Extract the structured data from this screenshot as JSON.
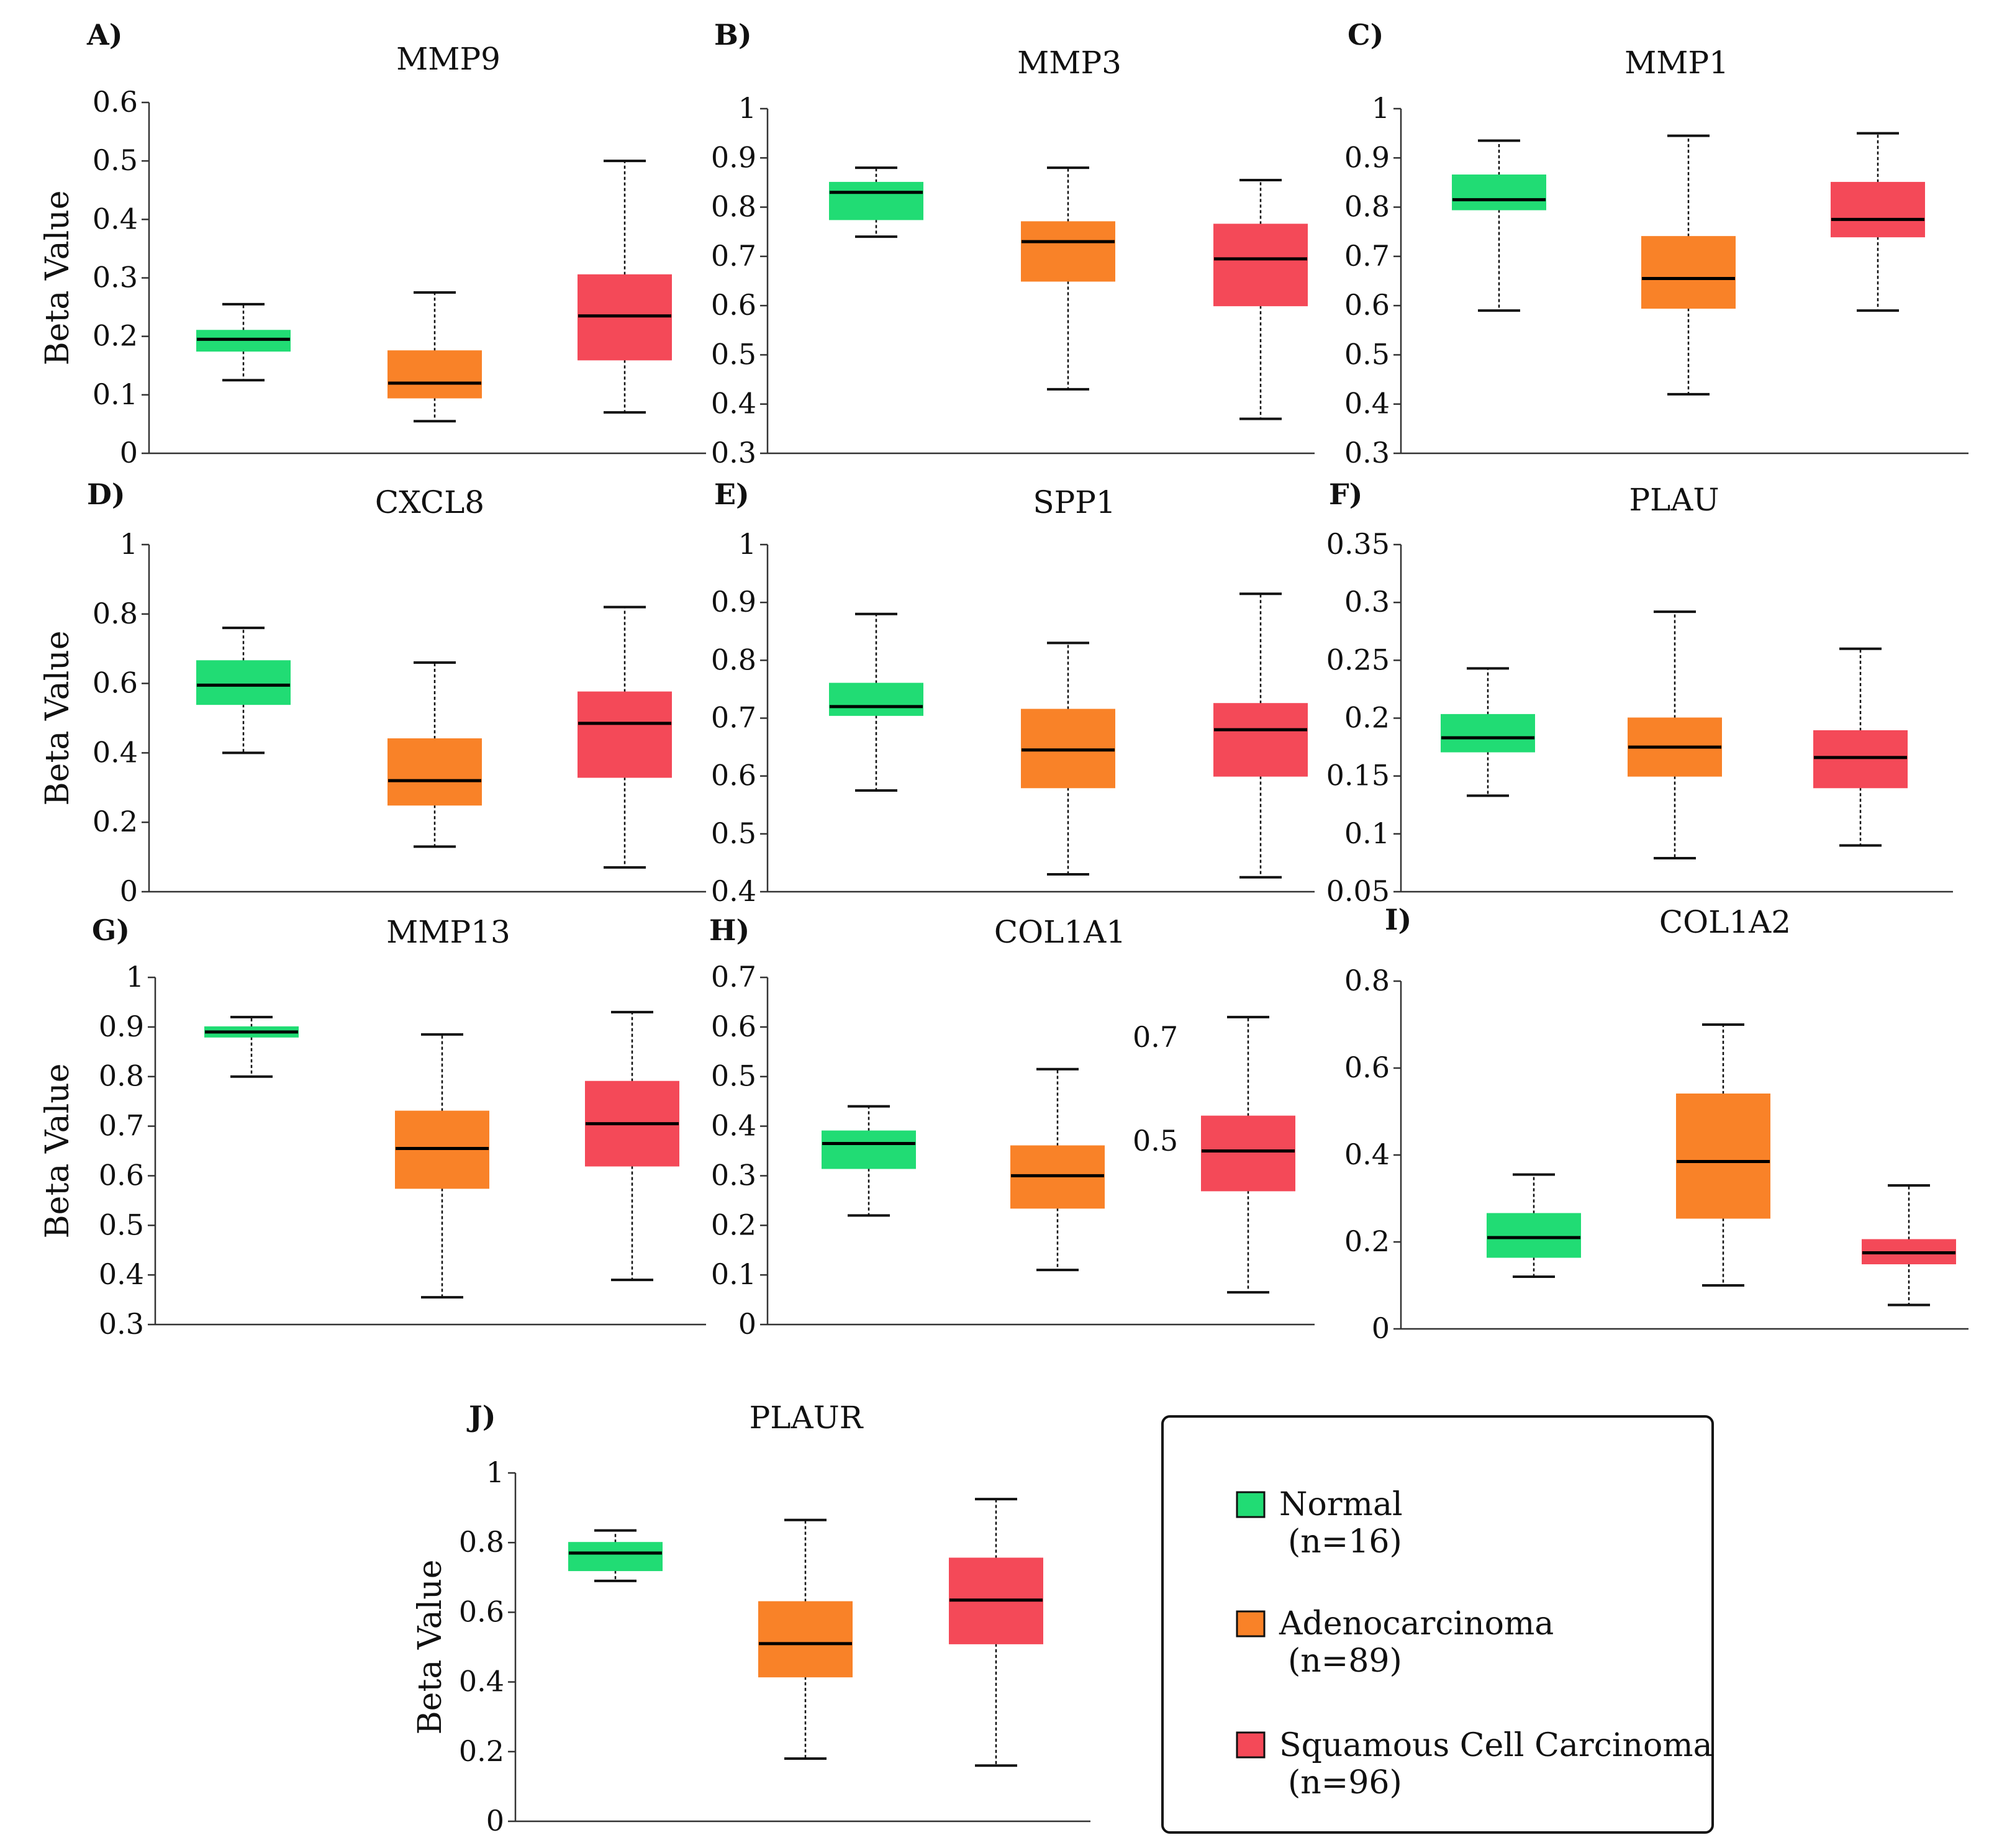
{
  "colors": {
    "Normal": "#21dc74",
    "Adenocarcinoma": "#f98228",
    "Squamous Cell Carcinoma": "#f44958"
  },
  "legend": [
    {
      "label": "Normal",
      "n": "(n=16)",
      "color": "#21dc74"
    },
    {
      "label": "Adenocarcinoma",
      "n": "(n=89)",
      "color": "#f98228"
    },
    {
      "label": "Squamous Cell Carcinoma",
      "n": "(n=96)",
      "color": "#f44958"
    }
  ],
  "chart_data": [
    {
      "type": "box",
      "letter": "A)",
      "title": "MMP9",
      "ylabel": "Beta Value",
      "ylim": [
        0,
        0.6
      ],
      "yticks": [
        "0",
        "0.1",
        "0.2",
        "0.3",
        "0.4",
        "0.5",
        "0.6"
      ],
      "groups": [
        "Normal",
        "Adenocarcinoma",
        "Squamous Cell Carcinoma"
      ],
      "boxes": [
        {
          "min": 0.125,
          "q1": 0.175,
          "median": 0.195,
          "q3": 0.21,
          "max": 0.255
        },
        {
          "min": 0.055,
          "q1": 0.095,
          "median": 0.12,
          "q3": 0.175,
          "max": 0.275
        },
        {
          "min": 0.07,
          "q1": 0.16,
          "median": 0.235,
          "q3": 0.305,
          "max": 0.5
        }
      ]
    },
    {
      "type": "box",
      "letter": "B)",
      "title": "MMP3",
      "ylabel": "",
      "ylim": [
        0.3,
        1
      ],
      "yticks": [
        "0.3",
        "0.4",
        "0.5",
        "0.6",
        "0.7",
        "0.8",
        "0.9",
        "1"
      ],
      "groups": [
        "Normal",
        "Adenocarcinoma",
        "Squamous Cell Carcinoma"
      ],
      "boxes": [
        {
          "min": 0.74,
          "q1": 0.775,
          "median": 0.83,
          "q3": 0.85,
          "max": 0.88
        },
        {
          "min": 0.43,
          "q1": 0.65,
          "median": 0.73,
          "q3": 0.77,
          "max": 0.88
        },
        {
          "min": 0.37,
          "q1": 0.6,
          "median": 0.695,
          "q3": 0.765,
          "max": 0.855
        }
      ]
    },
    {
      "type": "box",
      "letter": "C)",
      "title": "MMP1",
      "ylabel": "",
      "ylim": [
        0.3,
        1
      ],
      "yticks": [
        "0.3",
        "0.4",
        "0.5",
        "0.6",
        "0.7",
        "0.8",
        "0.9",
        "1"
      ],
      "groups": [
        "Normal",
        "Adenocarcinoma",
        "Squamous Cell Carcinoma"
      ],
      "boxes": [
        {
          "min": 0.59,
          "q1": 0.795,
          "median": 0.815,
          "q3": 0.865,
          "max": 0.935
        },
        {
          "min": 0.42,
          "q1": 0.595,
          "median": 0.655,
          "q3": 0.74,
          "max": 0.945
        },
        {
          "min": 0.59,
          "q1": 0.74,
          "median": 0.775,
          "q3": 0.85,
          "max": 0.95
        }
      ]
    },
    {
      "type": "box",
      "letter": "D)",
      "title": "CXCL8",
      "ylabel": "Beta Value",
      "ylim": [
        0,
        1
      ],
      "yticks": [
        "0",
        "0.2",
        "0.4",
        "0.6",
        "0.8",
        "1"
      ],
      "groups": [
        "Normal",
        "Adenocarcinoma",
        "Squamous Cell Carcinoma"
      ],
      "boxes": [
        {
          "min": 0.4,
          "q1": 0.54,
          "median": 0.595,
          "q3": 0.665,
          "max": 0.76
        },
        {
          "min": 0.13,
          "q1": 0.25,
          "median": 0.32,
          "q3": 0.44,
          "max": 0.66
        },
        {
          "min": 0.07,
          "q1": 0.33,
          "median": 0.485,
          "q3": 0.575,
          "max": 0.82
        }
      ]
    },
    {
      "type": "box",
      "letter": "E)",
      "title": "SPP1",
      "ylabel": "",
      "ylim": [
        0.4,
        1
      ],
      "yticks": [
        "0.4",
        "0.5",
        "0.6",
        "0.7",
        "0.8",
        "0.9",
        "1"
      ],
      "groups": [
        "Normal",
        "Adenocarcinoma",
        "Squamous Cell Carcinoma"
      ],
      "boxes": [
        {
          "min": 0.575,
          "q1": 0.705,
          "median": 0.72,
          "q3": 0.76,
          "max": 0.88
        },
        {
          "min": 0.43,
          "q1": 0.58,
          "median": 0.645,
          "q3": 0.715,
          "max": 0.83
        },
        {
          "min": 0.425,
          "q1": 0.6,
          "median": 0.68,
          "q3": 0.725,
          "max": 0.915
        }
      ]
    },
    {
      "type": "box",
      "letter": "F)",
      "title": "PLAU",
      "ylabel": "",
      "ylim": [
        0.05,
        0.35
      ],
      "yticks": [
        "0.05",
        "0.1",
        "0.15",
        "0.2",
        "0.25",
        "0.3",
        "0.35"
      ],
      "groups": [
        "Normal",
        "Adenocarcinoma",
        "Squamous Cell Carcinoma"
      ],
      "boxes": [
        {
          "min": 0.133,
          "q1": 0.171,
          "median": 0.183,
          "q3": 0.203,
          "max": 0.243
        },
        {
          "min": 0.079,
          "q1": 0.15,
          "median": 0.175,
          "q3": 0.2,
          "max": 0.292
        },
        {
          "min": 0.09,
          "q1": 0.14,
          "median": 0.166,
          "q3": 0.189,
          "max": 0.26
        }
      ]
    },
    {
      "type": "box",
      "letter": "G)",
      "title": "MMP13",
      "ylabel": "Beta Value",
      "ylim": [
        0.3,
        1
      ],
      "yticks": [
        "0.3",
        "0.4",
        "0.5",
        "0.6",
        "0.7",
        "0.8",
        "0.9",
        "1"
      ],
      "groups": [
        "Normal",
        "Adenocarcinoma",
        "Squamous Cell Carcinoma"
      ],
      "boxes": [
        {
          "min": 0.8,
          "q1": 0.88,
          "median": 0.89,
          "q3": 0.9,
          "max": 0.92
        },
        {
          "min": 0.355,
          "q1": 0.575,
          "median": 0.655,
          "q3": 0.73,
          "max": 0.885
        },
        {
          "min": 0.39,
          "q1": 0.62,
          "median": 0.705,
          "q3": 0.79,
          "max": 0.93
        }
      ]
    },
    {
      "type": "box",
      "letter": "H)",
      "title": "COL1A1",
      "ylabel": "",
      "ylim": [
        0,
        0.7
      ],
      "yticks": [
        "0",
        "0.1",
        "0.2",
        "0.3",
        "0.4",
        "0.5",
        "0.6",
        "0.7"
      ],
      "extra_labels": [
        "0.7",
        "0.5"
      ],
      "groups": [
        "Normal",
        "Adenocarcinoma",
        "Squamous Cell Carcinoma"
      ],
      "boxes": [
        {
          "min": 0.22,
          "q1": 0.315,
          "median": 0.365,
          "q3": 0.39,
          "max": 0.44
        },
        {
          "min": 0.11,
          "q1": 0.235,
          "median": 0.3,
          "q3": 0.36,
          "max": 0.515
        },
        {
          "min": 0.065,
          "q1": 0.27,
          "median": 0.35,
          "q3": 0.42,
          "max": 0.62
        }
      ]
    },
    {
      "type": "box",
      "letter": "I)",
      "title": "COL1A2",
      "ylabel": "",
      "ylim": [
        0,
        0.8
      ],
      "yticks": [
        "0",
        "0.2",
        "0.4",
        "0.6",
        "0.8"
      ],
      "groups": [
        "Normal",
        "Adenocarcinoma",
        "Squamous Cell Carcinoma"
      ],
      "boxes": [
        {
          "min": 0.12,
          "q1": 0.165,
          "median": 0.21,
          "q3": 0.265,
          "max": 0.355
        },
        {
          "min": 0.1,
          "q1": 0.255,
          "median": 0.385,
          "q3": 0.54,
          "max": 0.7
        },
        {
          "min": 0.055,
          "q1": 0.15,
          "median": 0.175,
          "q3": 0.205,
          "max": 0.33
        }
      ]
    },
    {
      "type": "box",
      "letter": "J)",
      "title": "PLAUR",
      "ylabel": "Beta Value",
      "ylim": [
        0,
        1
      ],
      "yticks": [
        "0",
        "0.2",
        "0.4",
        "0.6",
        "0.8",
        "1"
      ],
      "groups": [
        "Normal",
        "Adenocarcinoma",
        "Squamous Cell Carcinoma"
      ],
      "boxes": [
        {
          "min": 0.69,
          "q1": 0.72,
          "median": 0.77,
          "q3": 0.8,
          "max": 0.835
        },
        {
          "min": 0.18,
          "q1": 0.415,
          "median": 0.51,
          "q3": 0.63,
          "max": 0.865
        },
        {
          "min": 0.16,
          "q1": 0.51,
          "median": 0.635,
          "q3": 0.755,
          "max": 0.925
        }
      ]
    }
  ]
}
